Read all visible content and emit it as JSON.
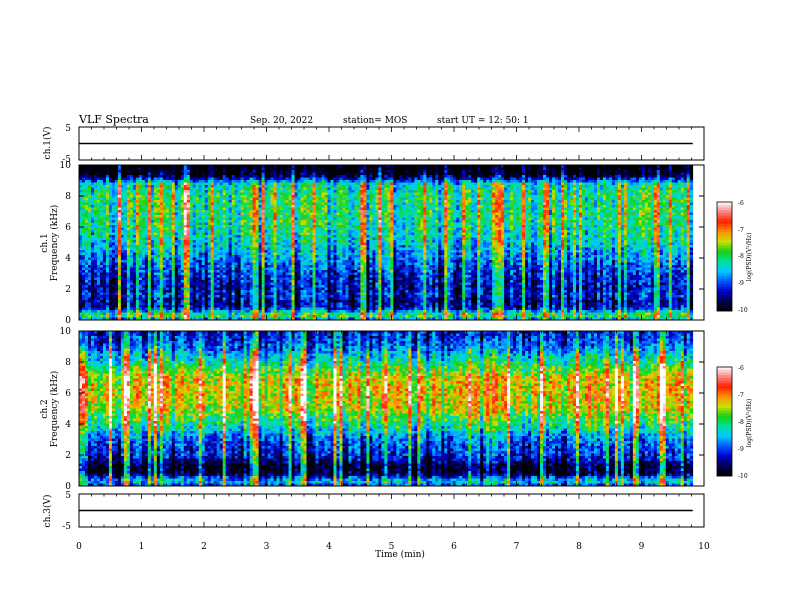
{
  "header": {
    "title": "VLF Spectra",
    "date": "Sep. 20, 2022",
    "station": "station= MOS",
    "start_ut": "start  UT =   12: 50: 1"
  },
  "colors": {
    "spectrum_stops": [
      "#000000",
      "#00004f",
      "#0000c8",
      "#0058ff",
      "#00c8ff",
      "#00e0a0",
      "#18d010",
      "#c8e000",
      "#ff9000",
      "#ff2000",
      "#ff8080",
      "#ffffff"
    ],
    "trace": "#000000"
  },
  "chart_data": [
    {
      "type": "line",
      "id": "ch1-waveform",
      "ylabel": "ch.1(V)",
      "ylim": [
        -5,
        5
      ],
      "yticks": [
        "5",
        "-5"
      ],
      "xlim": [
        0,
        10
      ],
      "series": [
        {
          "x": [
            0,
            9.82
          ],
          "values": [
            0,
            0
          ]
        }
      ]
    },
    {
      "type": "heatmap",
      "id": "ch1-spectrogram",
      "ylabel_lines": [
        "ch.1",
        "Frequency  (kHz)"
      ],
      "ylim": [
        0,
        10
      ],
      "yticks": [
        "0",
        "2",
        "4",
        "6",
        "8",
        "10"
      ],
      "xlim": [
        0,
        10
      ],
      "data_end_min": 9.82,
      "colorbar": {
        "label": "log(PSD)(V²/Hz)",
        "range": [
          -10,
          -6
        ],
        "ticks": [
          "-6",
          "-7",
          "-8",
          "-9",
          "-10"
        ]
      },
      "intensity_profile": {
        "freq_khz": [
          0,
          0.3,
          0.8,
          1.3,
          1.6,
          2.0,
          3.0,
          4.0,
          5.0,
          6.0,
          7.0,
          8.0,
          8.8,
          9.2,
          9.5,
          10
        ],
        "log_psd": [
          -8.6,
          -7.6,
          -9.2,
          -9.3,
          -9.0,
          -9.2,
          -9.0,
          -8.6,
          -8.2,
          -8.0,
          -7.9,
          -7.9,
          -8.2,
          -9.4,
          -9.9,
          -10.0
        ]
      }
    },
    {
      "type": "heatmap",
      "id": "ch2-spectrogram",
      "ylabel_lines": [
        "ch.2",
        "Frequency  (kHz)"
      ],
      "ylim": [
        0,
        10
      ],
      "yticks": [
        "0",
        "2",
        "4",
        "6",
        "8",
        "10"
      ],
      "xlim": [
        0,
        10
      ],
      "data_end_min": 9.82,
      "colorbar": {
        "label": "log(PSD)(V²/Hz)",
        "range": [
          -10,
          -6
        ],
        "ticks": [
          "-6",
          "-7",
          "-8",
          "-9",
          "-10"
        ]
      },
      "intensity_profile": {
        "freq_khz": [
          0,
          0.3,
          0.8,
          1.3,
          1.6,
          2.0,
          3.0,
          4.0,
          5.0,
          6.0,
          7.0,
          8.0,
          8.8,
          9.5,
          10
        ],
        "log_psd": [
          -8.9,
          -8.2,
          -9.6,
          -9.7,
          -9.3,
          -9.0,
          -8.7,
          -7.9,
          -7.3,
          -7.1,
          -7.2,
          -8.0,
          -8.6,
          -8.9,
          -9.0
        ]
      }
    },
    {
      "type": "line",
      "id": "ch3-waveform",
      "ylabel": "ch.3(V)",
      "ylim": [
        -5,
        5
      ],
      "yticks": [
        "5",
        "-5"
      ],
      "xlim": [
        0,
        10
      ],
      "xlabel": "Time  (min)",
      "xticks": [
        "0",
        "1",
        "2",
        "3",
        "4",
        "5",
        "6",
        "7",
        "8",
        "9",
        "10"
      ],
      "series": [
        {
          "x": [
            0,
            9.82
          ],
          "values": [
            0,
            0
          ]
        }
      ]
    }
  ]
}
